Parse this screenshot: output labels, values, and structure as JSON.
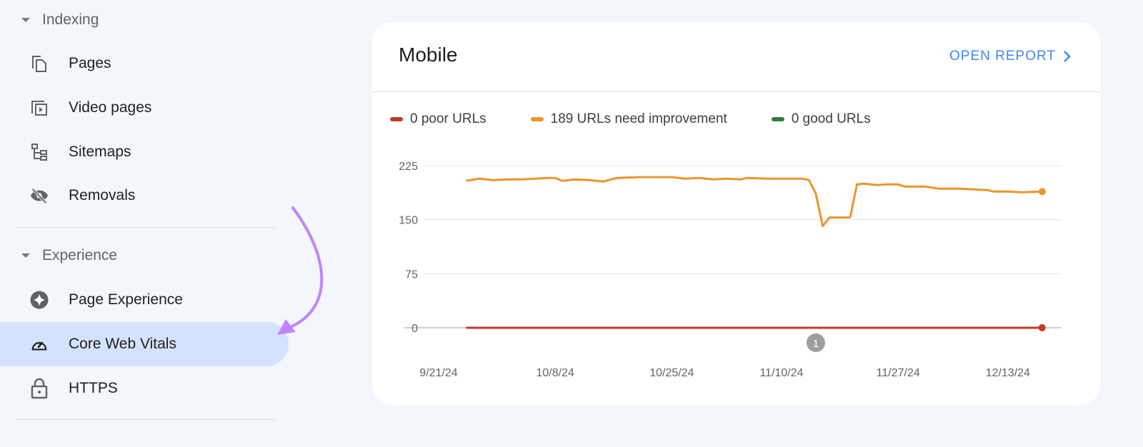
{
  "sidebar": {
    "sections": [
      {
        "label": "Indexing",
        "items": [
          {
            "label": "Pages",
            "icon": "pages-icon"
          },
          {
            "label": "Video pages",
            "icon": "video-pages-icon"
          },
          {
            "label": "Sitemaps",
            "icon": "sitemap-icon"
          },
          {
            "label": "Removals",
            "icon": "eye-off-icon"
          }
        ]
      },
      {
        "label": "Experience",
        "items": [
          {
            "label": "Page Experience",
            "icon": "sparkle-icon"
          },
          {
            "label": "Core Web Vitals",
            "icon": "speedometer-icon",
            "active": true
          },
          {
            "label": "HTTPS",
            "icon": "lock-icon"
          }
        ]
      }
    ],
    "active_color": "#d3e3fd",
    "arrow_color": "#c084fc"
  },
  "card": {
    "title": "Mobile",
    "open_report": "OPEN REPORT",
    "open_report_icon": "chevron-right-icon"
  },
  "chart_data": {
    "type": "line",
    "legend": [
      {
        "label": "0 poor URLs",
        "color": "#c5392b"
      },
      {
        "label": "189 URLs need improvement",
        "color": "#e8962e"
      },
      {
        "label": "0 good URLs",
        "color": "#2e7d43"
      }
    ],
    "legend_placement": "top",
    "yticks": [
      "0",
      "75",
      "150",
      "225"
    ],
    "ylim": [
      0,
      225
    ],
    "xticks": [
      "9/21/24",
      "10/8/24",
      "10/25/24",
      "11/10/24",
      "11/27/24",
      "12/13/24"
    ],
    "grid": true,
    "annotation": {
      "label": "1",
      "x": "11/15/24"
    },
    "series": [
      {
        "name": "189 URLs need improvement",
        "color": "#e8962e",
        "x": [
          "9/25/24",
          "9/27/24",
          "9/29/24",
          "10/1/24",
          "10/3/24",
          "10/5/24",
          "10/7/24",
          "10/8/24",
          "10/9/24",
          "10/11/24",
          "10/13/24",
          "10/15/24",
          "10/17/24",
          "10/20/24",
          "10/23/24",
          "10/25/24",
          "10/27/24",
          "10/29/24",
          "10/31/24",
          "11/2/24",
          "11/4/24",
          "11/5/24",
          "11/8/24",
          "11/11/24",
          "11/13/24",
          "11/14/24",
          "11/15/24",
          "11/16/24",
          "11/17/24",
          "11/20/24",
          "11/21/24",
          "11/22/24",
          "11/24/24",
          "11/25/24",
          "11/27/24",
          "11/28/24",
          "12/1/24",
          "12/3/24",
          "12/6/24",
          "12/8/24",
          "12/10/24",
          "12/11/24",
          "12/13/24",
          "12/15/24",
          "12/18/24"
        ],
        "values": [
          204,
          207,
          205,
          206,
          206,
          207,
          208,
          208,
          204,
          206,
          205,
          203,
          208,
          209,
          209,
          209,
          207,
          208,
          206,
          207,
          206,
          208,
          207,
          207,
          207,
          205,
          186,
          141,
          153,
          153,
          199,
          200,
          198,
          199,
          199,
          196,
          196,
          193,
          193,
          192,
          191,
          189,
          189,
          188,
          189
        ]
      },
      {
        "name": "0 poor URLs",
        "color": "#c5392b",
        "x": [
          "9/25/24",
          "12/18/24"
        ],
        "values": [
          0,
          0
        ]
      },
      {
        "name": "0 good URLs",
        "color": "#2e7d43",
        "x": [
          "9/25/24",
          "12/18/24"
        ],
        "values": [
          0,
          0
        ]
      }
    ]
  }
}
